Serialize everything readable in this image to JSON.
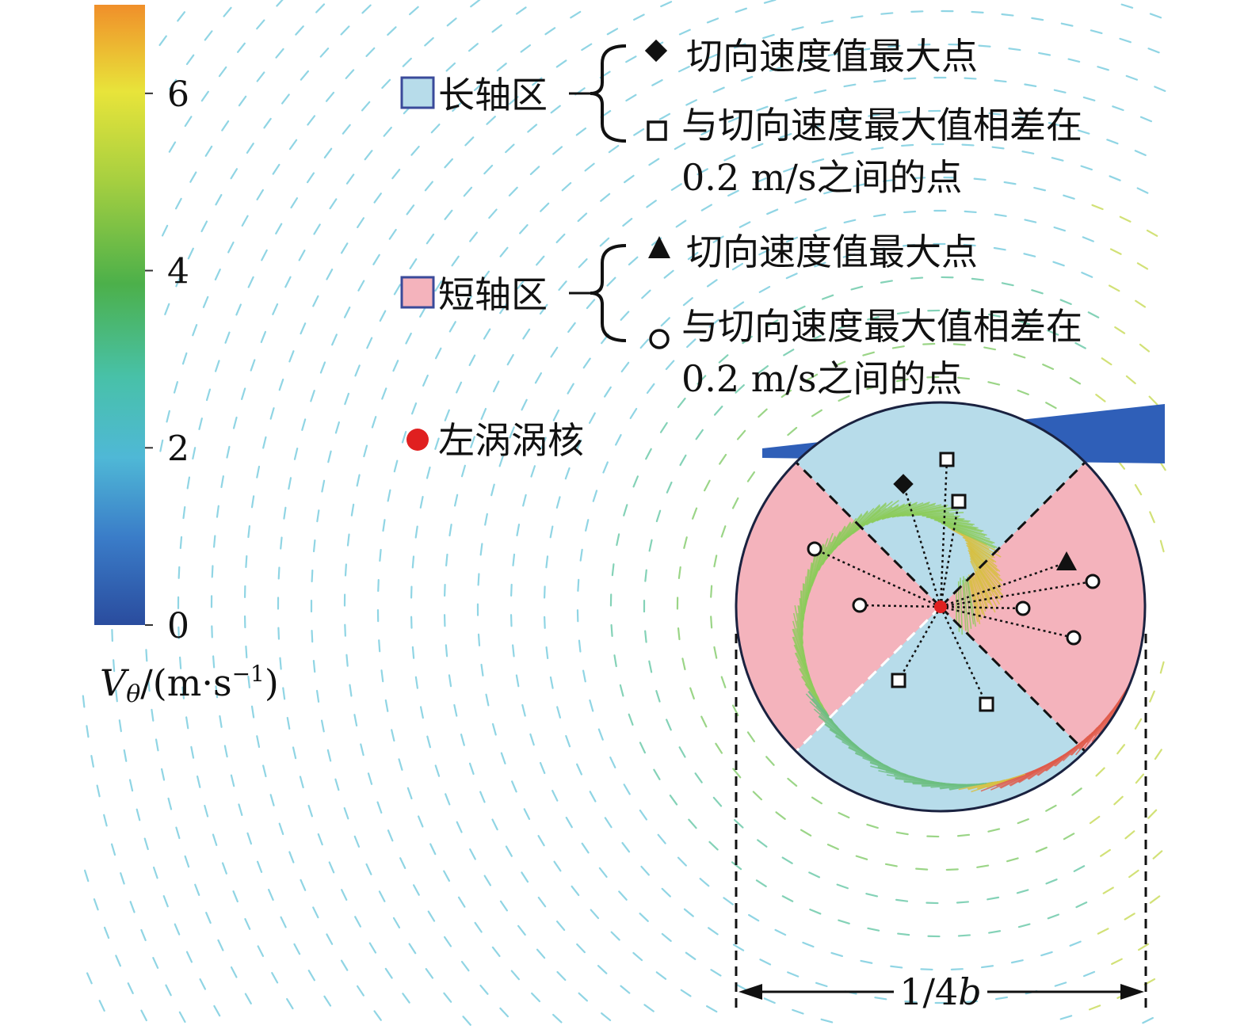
{
  "colorbar": {
    "ticks": [
      "0",
      "2",
      "4",
      "6"
    ],
    "tick_values": [
      0,
      2,
      4,
      6
    ],
    "max_value": 7,
    "label_main": "V",
    "label_sub": "θ",
    "label_rest": "/(m·s",
    "label_sup": "−1",
    "label_close": ")",
    "colors": [
      "#2a4c9e",
      "#3a7cc8",
      "#4fb8d6",
      "#48c1a8",
      "#5ab84a",
      "#a8d040",
      "#e8e43a",
      "#f08f2a"
    ]
  },
  "legend": {
    "long_axis_label": "长轴区",
    "long_axis_color": "#b7dcea",
    "long_max": "切向速度值最大点",
    "long_near_line1": "与切向速度最大值相差在",
    "long_near_line2": "0.2 m/s之间的点",
    "short_axis_label": "短轴区",
    "short_axis_color": "#f4b3bc",
    "short_max": "切向速度值最大点",
    "short_near_line1": "与切向速度最大值相差在",
    "short_near_line2": "0.2 m/s之间的点",
    "core_label": "左涡涡核",
    "core_color": "#e02020"
  },
  "dimension": {
    "label_prefix": "1/4",
    "label_var": "b"
  },
  "icons": {
    "long_max": "diamond-icon",
    "long_near": "open-square-icon",
    "short_max": "triangle-icon",
    "short_near": "open-circle-icon",
    "core": "red-dot-icon"
  }
}
